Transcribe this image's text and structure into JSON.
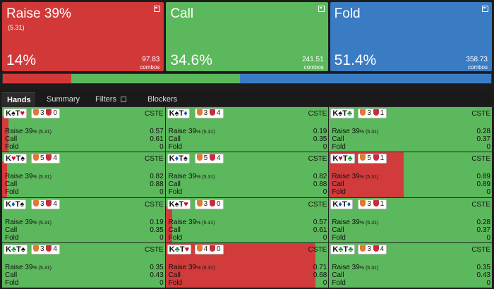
{
  "colors": {
    "raise": "#d33838",
    "call": "#5cb85c",
    "fold": "#3a7cc4",
    "red_suit": "#c8102e",
    "blue_suit": "#1456b5",
    "green_suit": "#119933",
    "black_suit": "#111",
    "shield_orange": "#e07a30",
    "shield_red": "#c82c3c"
  },
  "cards": [
    {
      "title": "Raise 39%",
      "subtitle": "(5.31)",
      "percent": "14%",
      "combos": "97.83",
      "combos_label": "combos",
      "color": "#d33838"
    },
    {
      "title": "Call",
      "subtitle": "",
      "percent": "34.6%",
      "combos": "241.51",
      "combos_label": "combos",
      "color": "#5cb85c"
    },
    {
      "title": "Fold",
      "subtitle": "",
      "percent": "51.4%",
      "combos": "358.73",
      "combos_label": "combos",
      "color": "#3a7cc4"
    }
  ],
  "frequency_bar": [
    {
      "name": "raise",
      "fraction": 0.14
    },
    {
      "name": "call",
      "fraction": 0.346
    },
    {
      "name": "fold",
      "fraction": 0.514
    }
  ],
  "tabs": [
    {
      "label": "Hands",
      "active": true
    },
    {
      "label": "Summary",
      "active": false
    },
    {
      "label": "Filters",
      "active": false,
      "icon": "copy-icon"
    },
    {
      "label": "Blockers",
      "active": false
    }
  ],
  "hands": [
    {
      "c1": "K",
      "s1": "♠",
      "col1": "black",
      "c2": "T",
      "s2": "♥",
      "col2": "red",
      "b1": "3",
      "b2": "0",
      "cste": "CSTE",
      "raise_label": "Raise 39",
      "raise_pct": "% (5.31)",
      "raise": "0.57",
      "call_label": "Call",
      "call": "0.61",
      "fold_label": "Fold",
      "fold": "0",
      "raise_frac": 0.04
    },
    {
      "c1": "K",
      "s1": "♠",
      "col1": "black",
      "c2": "T",
      "s2": "♦",
      "col2": "blue",
      "b1": "3",
      "b2": "4",
      "cste": "CSTE",
      "raise_label": "Raise 39",
      "raise_pct": "% (5.31)",
      "raise": "0.19",
      "call_label": "Call",
      "call": "0.35",
      "fold_label": "Fold",
      "fold": "0",
      "raise_frac": 0
    },
    {
      "c1": "K",
      "s1": "♠",
      "col1": "black",
      "c2": "T",
      "s2": "♣",
      "col2": "green",
      "b1": "3",
      "b2": "1",
      "cste": "CSTE",
      "raise_label": "Raise 39",
      "raise_pct": "% (5.31)",
      "raise": "0.28",
      "call_label": "Call",
      "call": "0.37",
      "fold_label": "Fold",
      "fold": "0",
      "raise_frac": 0
    },
    {
      "c1": "K",
      "s1": "♥",
      "col1": "red",
      "c2": "T",
      "s2": "♠",
      "col2": "black",
      "b1": "5",
      "b2": "4",
      "cste": "CSTE",
      "raise_label": "Raise 39",
      "raise_pct": "% (5.31)",
      "raise": "0.82",
      "call_label": "Call",
      "call": "0.88",
      "fold_label": "Fold",
      "fold": "0",
      "raise_frac": 0.03
    },
    {
      "c1": "K",
      "s1": "♦",
      "col1": "blue",
      "c2": "T",
      "s2": "♠",
      "col2": "black",
      "b1": "5",
      "b2": "4",
      "cste": "CSTE",
      "raise_label": "Raise 39",
      "raise_pct": "% (5.31)",
      "raise": "0.82",
      "call_label": "Call",
      "call": "0.88",
      "fold_label": "Fold",
      "fold": "0",
      "raise_frac": 0
    },
    {
      "c1": "K",
      "s1": "♥",
      "col1": "red",
      "c2": "T",
      "s2": "♣",
      "col2": "green",
      "b1": "5",
      "b2": "1",
      "cste": "CSTE",
      "raise_label": "Raise 39",
      "raise_pct": "% (5.31)",
      "raise": "0.89",
      "call_label": "Call",
      "call": "0.89",
      "fold_label": "Fold",
      "fold": "0",
      "raise_frac": 0.46
    },
    {
      "c1": "K",
      "s1": "♦",
      "col1": "blue",
      "c2": "T",
      "s2": "♠",
      "col2": "black",
      "b1": "3",
      "b2": "4",
      "cste": "CSTE",
      "raise_label": "Raise 39",
      "raise_pct": "% (5.31)",
      "raise": "0.19",
      "call_label": "Call",
      "call": "0.35",
      "fold_label": "Fold",
      "fold": "0",
      "raise_frac": 0
    },
    {
      "c1": "K",
      "s1": "♠",
      "col1": "black",
      "c2": "T",
      "s2": "♥",
      "col2": "red",
      "b1": "3",
      "b2": "0",
      "cste": "CSTE",
      "raise_label": "Raise 39",
      "raise_pct": "% (5.31)",
      "raise": "0.57",
      "call_label": "Call",
      "call": "0.61",
      "fold_label": "Fold",
      "fold": "0",
      "raise_frac": 0.04
    },
    {
      "c1": "K",
      "s1": "♦",
      "col1": "blue",
      "c2": "T",
      "s2": "♦",
      "col2": "blue",
      "b1": "3",
      "b2": "1",
      "cste": "CSTE",
      "raise_label": "Raise 39",
      "raise_pct": "% (5.31)",
      "raise": "0.28",
      "call_label": "Call",
      "call": "0.37",
      "fold_label": "Fold",
      "fold": "0",
      "raise_frac": 0
    },
    {
      "c1": "K",
      "s1": "♣",
      "col1": "green",
      "c2": "T",
      "s2": "♠",
      "col2": "black",
      "b1": "3",
      "b2": "4",
      "cste": "CSTE",
      "raise_label": "Raise 39",
      "raise_pct": "% (5.31)",
      "raise": "0.35",
      "call_label": "Call",
      "call": "0.43",
      "fold_label": "Fold",
      "fold": "0",
      "raise_frac": 0
    },
    {
      "c1": "K",
      "s1": "♣",
      "col1": "green",
      "c2": "T",
      "s2": "♥",
      "col2": "red",
      "b1": "4",
      "b2": "0",
      "cste": "CSTE",
      "raise_label": "Raise 39",
      "raise_pct": "% (5.31)",
      "raise": "0.71",
      "call_label": "Call",
      "call": "0.68",
      "fold_label": "Fold",
      "fold": "0",
      "raise_frac": 0.92
    },
    {
      "c1": "K",
      "s1": "♣",
      "col1": "green",
      "c2": "T",
      "s2": "♣",
      "col2": "green",
      "b1": "3",
      "b2": "4",
      "cste": "CSTE",
      "raise_label": "Raise 39",
      "raise_pct": "% (5.31)",
      "raise": "0.35",
      "call_label": "Call",
      "call": "0.43",
      "fold_label": "Fold",
      "fold": "0",
      "raise_frac": 0
    }
  ]
}
